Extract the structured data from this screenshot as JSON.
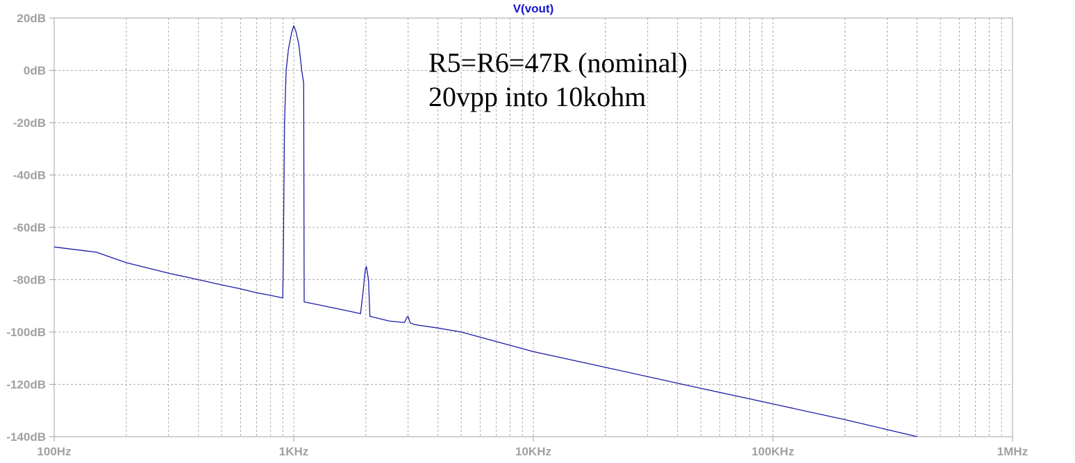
{
  "chart_data": {
    "type": "line",
    "title": "V(vout)",
    "x_scale": "log",
    "xlim": [
      100,
      1000000
    ],
    "ylim": [
      -140,
      20
    ],
    "grid": true,
    "x_ticks": [
      {
        "value": 100,
        "label": "100Hz"
      },
      {
        "value": 1000,
        "label": "1KHz"
      },
      {
        "value": 10000,
        "label": "10KHz"
      },
      {
        "value": 100000,
        "label": "100KHz"
      },
      {
        "value": 1000000,
        "label": "1MHz"
      }
    ],
    "y_ticks": [
      {
        "value": 20,
        "label": "20dB"
      },
      {
        "value": 0,
        "label": "0dB"
      },
      {
        "value": -20,
        "label": "-20dB"
      },
      {
        "value": -40,
        "label": "-40dB"
      },
      {
        "value": -60,
        "label": "-60dB"
      },
      {
        "value": -80,
        "label": "-80dB"
      },
      {
        "value": -100,
        "label": "-100dB"
      },
      {
        "value": -120,
        "label": "-120dB"
      },
      {
        "value": -140,
        "label": "-140dB"
      }
    ],
    "annotations": [
      "R5=R6=47R (nominal)",
      "20vpp into 10kohm"
    ],
    "series": [
      {
        "name": "V(vout)",
        "color": "#1a1aa6",
        "points": [
          [
            100,
            -67.5
          ],
          [
            150,
            -69.5
          ],
          [
            200,
            -73.5
          ],
          [
            300,
            -77.5
          ],
          [
            400,
            -80
          ],
          [
            500,
            -82
          ],
          [
            600,
            -83.5
          ],
          [
            700,
            -85
          ],
          [
            800,
            -86
          ],
          [
            900,
            -87
          ],
          [
            905,
            -72
          ],
          [
            915,
            -20
          ],
          [
            930,
            0
          ],
          [
            950,
            8
          ],
          [
            980,
            14.5
          ],
          [
            1000,
            17
          ],
          [
            1020,
            15
          ],
          [
            1050,
            10
          ],
          [
            1080,
            0
          ],
          [
            1100,
            -5
          ],
          [
            1105,
            -88.5
          ],
          [
            1300,
            -89.8
          ],
          [
            1500,
            -91
          ],
          [
            1800,
            -92.5
          ],
          [
            1900,
            -93
          ],
          [
            1950,
            -84
          ],
          [
            1990,
            -76
          ],
          [
            2010,
            -75
          ],
          [
            2050,
            -80
          ],
          [
            2080,
            -94
          ],
          [
            2500,
            -95.8
          ],
          [
            2900,
            -96.4
          ],
          [
            2960,
            -94.5
          ],
          [
            3000,
            -94
          ],
          [
            3060,
            -96.5
          ],
          [
            3200,
            -97.2
          ],
          [
            4000,
            -98.5
          ],
          [
            5000,
            -100
          ],
          [
            10000,
            -107.5
          ],
          [
            20000,
            -113.5
          ],
          [
            50000,
            -121.5
          ],
          [
            100000,
            -127.5
          ],
          [
            200000,
            -133.5
          ],
          [
            400000,
            -140
          ]
        ]
      }
    ]
  }
}
